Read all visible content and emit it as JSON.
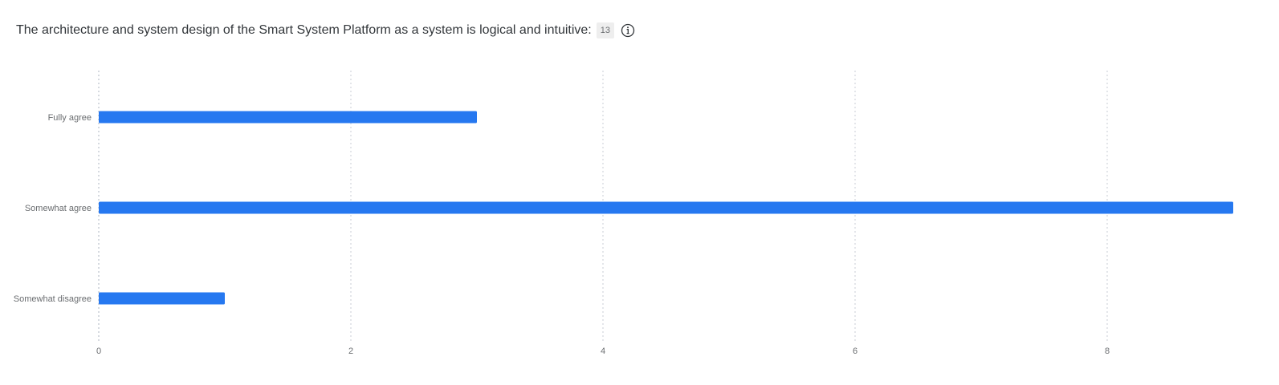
{
  "header": {
    "question": "The architecture and system design of the Smart System Platform as a system is logical and intuitive:",
    "response_count": "13",
    "info_icon": "info-circle-icon"
  },
  "colors": {
    "bar": "#2678f0",
    "grid": "#c8ced6",
    "axis_label": "#6a6d70",
    "title": "#32363a"
  },
  "chart_data": {
    "type": "bar",
    "orientation": "horizontal",
    "categories": [
      "Fully agree",
      "Somewhat agree",
      "Somewhat disagree"
    ],
    "values": [
      3,
      9,
      1
    ],
    "x_ticks": [
      0,
      2,
      4,
      6,
      8
    ],
    "xlim": [
      0,
      9
    ],
    "grid": true,
    "legend": "none"
  }
}
